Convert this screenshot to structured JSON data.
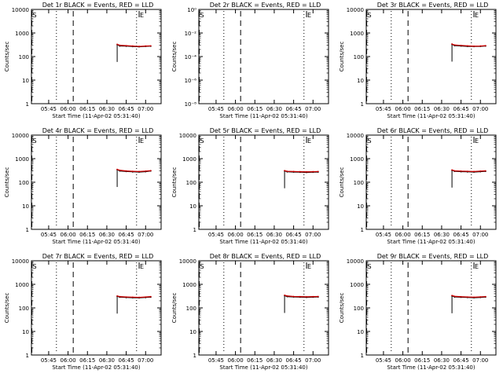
{
  "chart_data": [
    {
      "type": "line",
      "title": "Det 1r BLACK = Events, RED = LLD",
      "xlabel": "Start Time (11-Apr-02 05:31:40)",
      "ylabel": "Counts/sec",
      "x_ticks": [
        "05:45",
        "06:00",
        "06:15",
        "06:30",
        "06:45",
        "07:00"
      ],
      "y_ticks": [
        "1",
        "10",
        "100",
        "1000",
        "10000"
      ],
      "y_scale": "log",
      "ylim": [
        1,
        10000
      ],
      "markers": [
        {
          "label": "S",
          "x": "05:32",
          "style": "dashed"
        },
        {
          "label": "E",
          "x": "06:55",
          "style": "solid"
        }
      ],
      "vlines": [
        {
          "x": "05:32",
          "style": "dashed"
        },
        {
          "x": "05:51",
          "style": "dotted"
        },
        {
          "x": "06:04",
          "style": "dashed"
        },
        {
          "x": "06:53",
          "style": "dotted"
        }
      ],
      "series": [
        {
          "name": "BLACK = Events",
          "color": "#000000",
          "x": [
            "06:38",
            "06:40",
            "06:45",
            "06:50",
            "06:55",
            "07:00",
            "07:04"
          ],
          "values": [
            320,
            280,
            275,
            265,
            260,
            270,
            275
          ]
        },
        {
          "name": "RED = LLD",
          "color": "#cc0000",
          "x": [
            "06:38",
            "06:40",
            "06:45",
            "06:50",
            "06:55",
            "07:00",
            "07:04"
          ],
          "values": [
            330,
            300,
            290,
            280,
            270,
            280,
            285
          ]
        }
      ]
    },
    {
      "type": "line",
      "title": "Det 2r BLACK = Events, RED = LLD",
      "xlabel": "Start Time (11-Apr-02 05:31:40)",
      "ylabel": "Counts/sec",
      "x_ticks": [
        "05:45",
        "06:00",
        "06:15",
        "06:30",
        "06:45",
        "07:00"
      ],
      "y_ticks": [
        "10⁻⁸",
        "10⁻⁶",
        "10⁻⁴",
        "10⁻²",
        "10⁰"
      ],
      "y_scale": "log",
      "ylim": [
        1e-09,
        1
      ],
      "markers": [
        {
          "label": "S",
          "x": "05:32",
          "style": "dashed"
        },
        {
          "label": "E",
          "x": "06:55",
          "style": "solid"
        }
      ],
      "vlines": [
        {
          "x": "05:32",
          "style": "dashed"
        },
        {
          "x": "05:51",
          "style": "dotted"
        },
        {
          "x": "06:04",
          "style": "dashed"
        },
        {
          "x": "06:53",
          "style": "dotted"
        }
      ],
      "series": []
    },
    {
      "type": "line",
      "title": "Det 3r BLACK = Events, RED = LLD",
      "xlabel": "Start Time (11-Apr-02 05:31:40)",
      "ylabel": "Counts/sec",
      "x_ticks": [
        "05:45",
        "06:00",
        "06:15",
        "06:30",
        "06:45",
        "07:00"
      ],
      "y_ticks": [
        "1",
        "10",
        "100",
        "1000",
        "10000"
      ],
      "y_scale": "log",
      "ylim": [
        1,
        10000
      ],
      "markers": [
        {
          "label": "S",
          "x": "05:32",
          "style": "dashed"
        },
        {
          "label": "E",
          "x": "06:55",
          "style": "solid"
        }
      ],
      "vlines": [
        {
          "x": "05:32",
          "style": "dashed"
        },
        {
          "x": "05:51",
          "style": "dotted"
        },
        {
          "x": "06:04",
          "style": "dashed"
        },
        {
          "x": "06:53",
          "style": "dotted"
        }
      ],
      "series": [
        {
          "name": "BLACK = Events",
          "color": "#000000",
          "x": [
            "06:38",
            "06:40",
            "06:45",
            "06:50",
            "06:55",
            "07:00",
            "07:04"
          ],
          "values": [
            330,
            290,
            280,
            270,
            265,
            270,
            280
          ]
        },
        {
          "name": "RED = LLD",
          "color": "#cc0000",
          "x": [
            "06:38",
            "06:40",
            "06:45",
            "06:50",
            "06:55",
            "07:00",
            "07:04"
          ],
          "values": [
            340,
            310,
            295,
            285,
            275,
            280,
            290
          ]
        }
      ]
    },
    {
      "type": "line",
      "title": "Det 4r BLACK = Events, RED = LLD",
      "xlabel": "Start Time (11-Apr-02 05:31:40)",
      "ylabel": "Counts/sec",
      "x_ticks": [
        "05:45",
        "06:00",
        "06:15",
        "06:30",
        "06:45",
        "07:00"
      ],
      "y_ticks": [
        "1",
        "10",
        "100",
        "1000",
        "10000"
      ],
      "y_scale": "log",
      "ylim": [
        1,
        10000
      ],
      "markers": [
        {
          "label": "S",
          "x": "05:32",
          "style": "dashed"
        },
        {
          "label": "E",
          "x": "06:55",
          "style": "solid"
        }
      ],
      "vlines": [
        {
          "x": "05:32",
          "style": "dashed"
        },
        {
          "x": "05:51",
          "style": "dotted"
        },
        {
          "x": "06:04",
          "style": "dashed"
        },
        {
          "x": "06:53",
          "style": "dotted"
        }
      ],
      "series": [
        {
          "name": "BLACK = Events",
          "color": "#000000",
          "x": [
            "06:38",
            "06:40",
            "06:45",
            "06:50",
            "06:55",
            "07:00",
            "07:04"
          ],
          "values": [
            340,
            300,
            285,
            275,
            270,
            280,
            300
          ]
        },
        {
          "name": "RED = LLD",
          "color": "#cc0000",
          "x": [
            "06:38",
            "06:40",
            "06:45",
            "06:50",
            "06:55",
            "07:00",
            "07:04"
          ],
          "values": [
            350,
            320,
            300,
            290,
            285,
            295,
            310
          ]
        }
      ]
    },
    {
      "type": "line",
      "title": "Det 5r BLACK = Events, RED = LLD",
      "xlabel": "Start Time (11-Apr-02 05:31:40)",
      "ylabel": "Counts/sec",
      "x_ticks": [
        "05:45",
        "06:00",
        "06:15",
        "06:30",
        "06:45",
        "07:00"
      ],
      "y_ticks": [
        "1",
        "10",
        "100",
        "1000",
        "10000"
      ],
      "y_scale": "log",
      "ylim": [
        1,
        10000
      ],
      "markers": [
        {
          "label": "S",
          "x": "05:32",
          "style": "dashed"
        },
        {
          "label": "E",
          "x": "06:55",
          "style": "solid"
        }
      ],
      "vlines": [
        {
          "x": "05:32",
          "style": "dashed"
        },
        {
          "x": "05:51",
          "style": "dotted"
        },
        {
          "x": "06:04",
          "style": "dashed"
        },
        {
          "x": "06:53",
          "style": "dotted"
        }
      ],
      "series": [
        {
          "name": "BLACK = Events",
          "color": "#000000",
          "x": [
            "06:38",
            "06:40",
            "06:45",
            "06:50",
            "06:55",
            "07:00",
            "07:04"
          ],
          "values": [
            300,
            275,
            270,
            265,
            260,
            265,
            270
          ]
        },
        {
          "name": "RED = LLD",
          "color": "#cc0000",
          "x": [
            "06:38",
            "06:40",
            "06:45",
            "06:50",
            "06:55",
            "07:00",
            "07:04"
          ],
          "values": [
            310,
            290,
            285,
            280,
            275,
            280,
            285
          ]
        }
      ]
    },
    {
      "type": "line",
      "title": "Det 6r BLACK = Events, RED = LLD",
      "xlabel": "Start Time (11-Apr-02 05:31:40)",
      "ylabel": "Counts/sec",
      "x_ticks": [
        "05:45",
        "06:00",
        "06:15",
        "06:30",
        "06:45",
        "07:00"
      ],
      "y_ticks": [
        "1",
        "10",
        "100",
        "1000",
        "10000"
      ],
      "y_scale": "log",
      "ylim": [
        1,
        10000
      ],
      "markers": [
        {
          "label": "S",
          "x": "05:32",
          "style": "dashed"
        },
        {
          "label": "E",
          "x": "06:55",
          "style": "solid"
        }
      ],
      "vlines": [
        {
          "x": "05:32",
          "style": "dashed"
        },
        {
          "x": "05:51",
          "style": "dotted"
        },
        {
          "x": "06:04",
          "style": "dashed"
        },
        {
          "x": "06:53",
          "style": "dotted"
        }
      ],
      "series": [
        {
          "name": "BLACK = Events",
          "color": "#000000",
          "x": [
            "06:38",
            "06:40",
            "06:45",
            "06:50",
            "06:55",
            "07:00",
            "07:04"
          ],
          "values": [
            320,
            290,
            280,
            275,
            270,
            280,
            290
          ]
        },
        {
          "name": "RED = LLD",
          "color": "#cc0000",
          "x": [
            "06:38",
            "06:40",
            "06:45",
            "06:50",
            "06:55",
            "07:00",
            "07:04"
          ],
          "values": [
            330,
            305,
            295,
            290,
            285,
            295,
            305
          ]
        }
      ]
    },
    {
      "type": "line",
      "title": "Det 7r BLACK = Events, RED = LLD",
      "xlabel": "Start Time (11-Apr-02 05:31:40)",
      "ylabel": "Counts/sec",
      "x_ticks": [
        "05:45",
        "06:00",
        "06:15",
        "06:30",
        "06:45",
        "07:00"
      ],
      "y_ticks": [
        "1",
        "10",
        "100",
        "1000",
        "10000"
      ],
      "y_scale": "log",
      "ylim": [
        1,
        10000
      ],
      "markers": [
        {
          "label": "S",
          "x": "05:32",
          "style": "dashed"
        },
        {
          "label": "E",
          "x": "06:55",
          "style": "solid"
        }
      ],
      "vlines": [
        {
          "x": "05:32",
          "style": "dashed"
        },
        {
          "x": "05:51",
          "style": "dotted"
        },
        {
          "x": "06:04",
          "style": "dashed"
        },
        {
          "x": "06:53",
          "style": "dotted"
        }
      ],
      "series": [
        {
          "name": "BLACK = Events",
          "color": "#000000",
          "x": [
            "06:38",
            "06:40",
            "06:45",
            "06:50",
            "06:55",
            "07:00",
            "07:04"
          ],
          "values": [
            310,
            285,
            275,
            270,
            265,
            275,
            285
          ]
        },
        {
          "name": "RED = LLD",
          "color": "#cc0000",
          "x": [
            "06:38",
            "06:40",
            "06:45",
            "06:50",
            "06:55",
            "07:00",
            "07:04"
          ],
          "values": [
            320,
            300,
            290,
            285,
            280,
            290,
            300
          ]
        }
      ]
    },
    {
      "type": "line",
      "title": "Det 8r BLACK = Events, RED = LLD",
      "xlabel": "Start Time (11-Apr-02 05:31:40)",
      "ylabel": "Counts/sec",
      "x_ticks": [
        "05:45",
        "06:00",
        "06:15",
        "06:30",
        "06:45",
        "07:00"
      ],
      "y_ticks": [
        "1",
        "10",
        "100",
        "1000",
        "10000"
      ],
      "y_scale": "log",
      "ylim": [
        1,
        10000
      ],
      "markers": [
        {
          "label": "S",
          "x": "05:32",
          "style": "dashed"
        },
        {
          "label": "E",
          "x": "06:55",
          "style": "solid"
        }
      ],
      "vlines": [
        {
          "x": "05:32",
          "style": "dashed"
        },
        {
          "x": "05:51",
          "style": "dotted"
        },
        {
          "x": "06:04",
          "style": "dashed"
        },
        {
          "x": "06:53",
          "style": "dotted"
        }
      ],
      "series": [
        {
          "name": "BLACK = Events",
          "color": "#000000",
          "x": [
            "06:38",
            "06:40",
            "06:45",
            "06:50",
            "06:55",
            "07:00",
            "07:04"
          ],
          "values": [
            330,
            300,
            290,
            285,
            280,
            285,
            290
          ]
        },
        {
          "name": "RED = LLD",
          "color": "#cc0000",
          "x": [
            "06:38",
            "06:40",
            "06:45",
            "06:50",
            "06:55",
            "07:00",
            "07:04"
          ],
          "values": [
            345,
            320,
            305,
            300,
            295,
            300,
            305
          ]
        }
      ]
    },
    {
      "type": "line",
      "title": "Det 9r BLACK = Events, RED = LLD",
      "xlabel": "Start Time (11-Apr-02 05:31:40)",
      "ylabel": "Counts/sec",
      "x_ticks": [
        "05:45",
        "06:00",
        "06:15",
        "06:30",
        "06:45",
        "07:00"
      ],
      "y_ticks": [
        "1",
        "10",
        "100",
        "1000",
        "10000"
      ],
      "y_scale": "log",
      "ylim": [
        1,
        10000
      ],
      "markers": [
        {
          "label": "S",
          "x": "05:32",
          "style": "dashed"
        },
        {
          "label": "E",
          "x": "06:55",
          "style": "solid"
        }
      ],
      "vlines": [
        {
          "x": "05:32",
          "style": "dashed"
        },
        {
          "x": "05:51",
          "style": "dotted"
        },
        {
          "x": "06:04",
          "style": "dashed"
        },
        {
          "x": "06:53",
          "style": "dotted"
        }
      ],
      "series": [
        {
          "name": "BLACK = Events",
          "color": "#000000",
          "x": [
            "06:38",
            "06:40",
            "06:45",
            "06:50",
            "06:55",
            "07:00",
            "07:04"
          ],
          "values": [
            320,
            290,
            282,
            276,
            270,
            278,
            288
          ]
        },
        {
          "name": "RED = LLD",
          "color": "#cc0000",
          "x": [
            "06:38",
            "06:40",
            "06:45",
            "06:50",
            "06:55",
            "07:00",
            "07:04"
          ],
          "values": [
            335,
            310,
            298,
            290,
            284,
            292,
            302
          ]
        }
      ]
    }
  ]
}
